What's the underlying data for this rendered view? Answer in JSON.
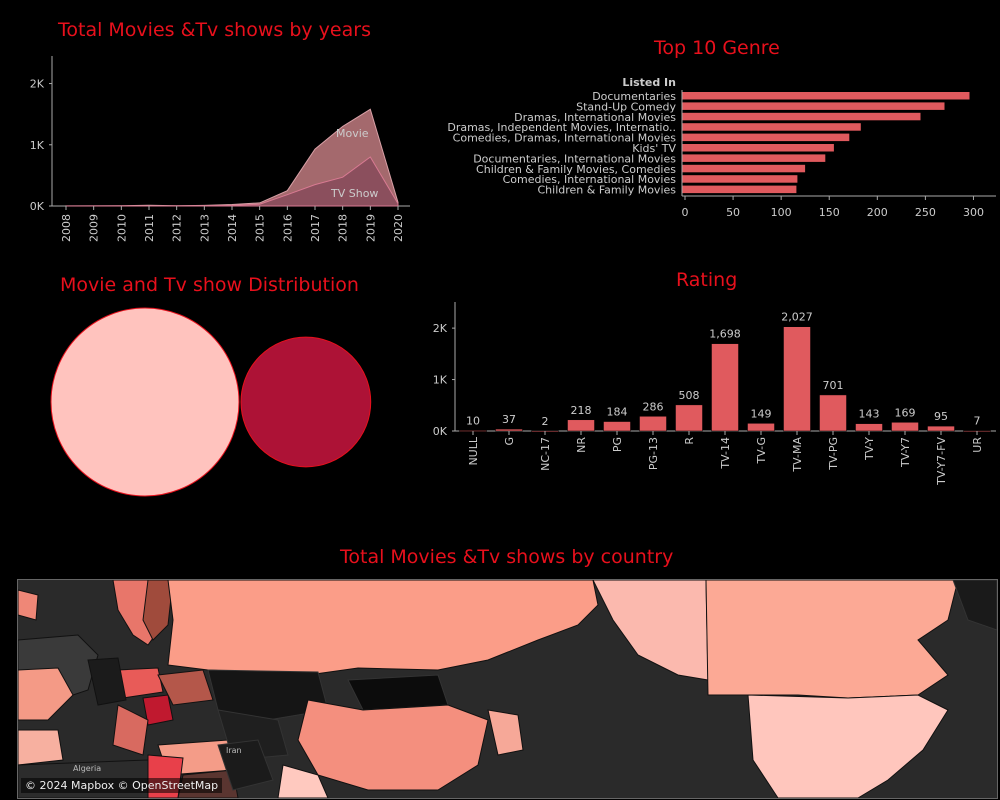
{
  "titles": {
    "years": "Total Movies &Tv shows by years",
    "genre": "Top 10 Genre",
    "distribution": "Movie and Tv show Distribution",
    "rating": "Rating",
    "country": "Total Movies &Tv shows by country"
  },
  "colors": {
    "title": "#e8101c",
    "bar": "#e05a5e",
    "movie_area": "#a4696d",
    "tv_area": "#8a4e5d",
    "movie_circle": "#ffc3be",
    "tv_circle": "#ad1236"
  },
  "map": {
    "credit": "© 2024 Mapbox © OpenStreetMap",
    "labels": [
      "Algeria",
      "Iran"
    ]
  },
  "chart_data": [
    {
      "type": "area",
      "title": "Total Movies &Tv shows by years",
      "x": [
        "2008",
        "2009",
        "2010",
        "2011",
        "2012",
        "2013",
        "2014",
        "2015",
        "2016",
        "2017",
        "2018",
        "2019",
        "2020"
      ],
      "series": [
        {
          "name": "Movie",
          "values": [
            2,
            2,
            5,
            13,
            5,
            10,
            25,
            50,
            250,
            930,
            1300,
            1580,
            60
          ]
        },
        {
          "name": "TV Show",
          "values": [
            0,
            1,
            1,
            0,
            2,
            5,
            10,
            30,
            185,
            350,
            470,
            800,
            40
          ]
        }
      ],
      "yticks": [
        "0K",
        "1K",
        "2K"
      ],
      "ylim": [
        0,
        2450
      ]
    },
    {
      "type": "bar",
      "orientation": "horizontal",
      "title": "Top 10 Genre",
      "ylabel": "Listed In",
      "categories": [
        "Documentaries",
        "Stand-Up Comedy",
        "Dramas, International Movies",
        "Dramas, Independent Movies, Internatio..",
        "Comedies, Dramas, International Movies",
        "Kids' TV",
        "Documentaries, International Movies",
        "Children & Family Movies, Comedies",
        "Comedies, International Movies",
        "Children & Family Movies"
      ],
      "values": [
        299,
        273,
        248,
        186,
        174,
        158,
        149,
        128,
        120,
        119
      ],
      "xticks": [
        0,
        50,
        100,
        150,
        200,
        250,
        300
      ],
      "xlim": [
        0,
        312
      ]
    },
    {
      "type": "bubble",
      "title": "Movie and Tv show Distribution",
      "series": [
        {
          "name": "Movie",
          "color": "#ffc3be",
          "relative_size": 1.0
        },
        {
          "name": "TV Show",
          "color": "#ad1236",
          "relative_size": 0.69
        }
      ]
    },
    {
      "type": "bar",
      "title": "Rating",
      "categories": [
        "NULL",
        "G",
        "NC-17",
        "NR",
        "PG",
        "PG-13",
        "R",
        "TV-14",
        "TV-G",
        "TV-MA",
        "TV-PG",
        "TV-Y",
        "TV-Y7",
        "TV-Y7-FV",
        "UR"
      ],
      "values": [
        10,
        37,
        2,
        218,
        184,
        286,
        508,
        1698,
        149,
        2027,
        701,
        143,
        169,
        95,
        7
      ],
      "labels": [
        "10",
        "37",
        "2",
        "218",
        "184",
        "286",
        "508",
        "1,698",
        "149",
        "2,027",
        "701",
        "143",
        "169",
        "95",
        "7"
      ],
      "yticks": [
        "0K",
        "1K",
        "2K"
      ],
      "ylim": [
        0,
        2430
      ]
    }
  ]
}
